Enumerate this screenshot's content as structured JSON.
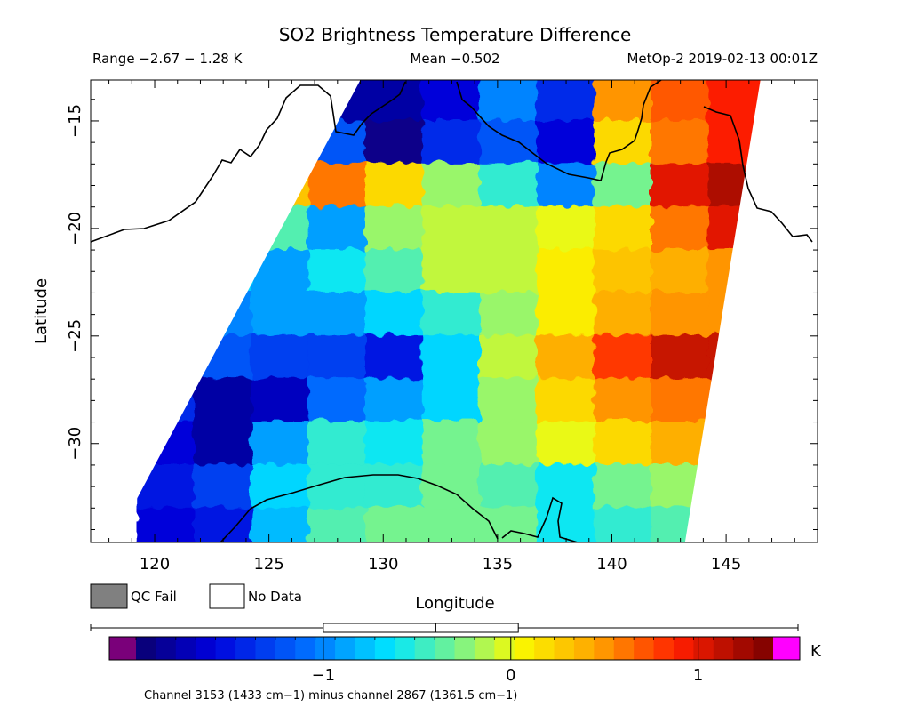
{
  "header": {
    "title": "SO2 Brightness Temperature Difference",
    "range": "Range −2.67 − 1.28 K",
    "mean": "Mean −0.502",
    "satellite_time": "MetOp-2 2019-02-13 00:01Z"
  },
  "axes": {
    "xlabel": "Longitude",
    "ylabel": "Latitude",
    "xlim": [
      117.2,
      149.0
    ],
    "ylim": [
      -34.6,
      -13.1
    ],
    "xticks": [
      {
        "value": 120,
        "label": "120"
      },
      {
        "value": 125,
        "label": "125"
      },
      {
        "value": 130,
        "label": "130"
      },
      {
        "value": 135,
        "label": "135"
      },
      {
        "value": 140,
        "label": "140"
      },
      {
        "value": 145,
        "label": "145"
      }
    ],
    "yticks": [
      {
        "value": -15,
        "label": "−15"
      },
      {
        "value": -20,
        "label": "−20"
      },
      {
        "value": -25,
        "label": "−25"
      },
      {
        "value": -30,
        "label": "−30"
      }
    ]
  },
  "legend": {
    "qc_fail": "QC Fail",
    "no_data": "No Data",
    "qc_fail_color": "#808080",
    "no_data_color": "#ffffff"
  },
  "colorbar": {
    "unit": "K",
    "min": -2.0,
    "max": 1.4,
    "ticks": [
      {
        "value": -1,
        "label": "−1"
      },
      {
        "value": 0,
        "label": "0"
      },
      {
        "value": 1,
        "label": "1"
      }
    ],
    "under_color": "#7a007a",
    "over_color": "#ff00ff",
    "box_range": [
      -1.0,
      0.04
    ],
    "box_mid": -0.4,
    "caption": "Channel 3153 (1433 cm−1) minus channel 2867 (1361.5 cm−1)"
  },
  "chart_data": {
    "type": "heatmap",
    "title": "SO2 Brightness Temperature Difference",
    "xlabel": "Longitude",
    "ylabel": "Latitude",
    "units": "K",
    "value_range": [
      -2.67,
      1.28
    ],
    "mean": -0.502,
    "swath_corners_lonlat": [
      [
        118.2,
        -34.6
      ],
      [
        129.0,
        -13.1
      ],
      [
        146.5,
        -13.1
      ],
      [
        143.2,
        -34.6
      ]
    ],
    "lons": [
      120.5,
      123,
      125.5,
      128,
      130.5,
      133,
      135.5,
      138,
      140.5,
      143,
      145.5
    ],
    "lats": [
      -14,
      -16,
      -18,
      -20,
      -22,
      -24,
      -26,
      -28,
      -30,
      -32,
      -34
    ],
    "values": [
      [
        null,
        null,
        null,
        null,
        -1.8,
        -1.6,
        -1.0,
        -1.4,
        0.5,
        0.7,
        0.9
      ],
      [
        null,
        null,
        null,
        -1.2,
        -1.9,
        -1.4,
        -1.2,
        -1.6,
        0.2,
        0.6,
        0.9
      ],
      [
        null,
        null,
        0.3,
        0.6,
        0.2,
        -0.2,
        -0.5,
        -1.0,
        -0.3,
        1.0,
        1.2
      ],
      [
        null,
        null,
        -0.4,
        -0.9,
        -0.2,
        -0.1,
        -0.1,
        0.0,
        0.2,
        0.6,
        1.0
      ],
      [
        null,
        -0.7,
        -0.9,
        -0.6,
        -0.4,
        -0.1,
        -0.1,
        0.1,
        0.3,
        0.4,
        0.5
      ],
      [
        null,
        -1.0,
        -0.9,
        -0.9,
        -0.7,
        -0.5,
        -0.2,
        0.1,
        0.4,
        0.5,
        null
      ],
      [
        -1.1,
        -1.2,
        -1.3,
        -1.3,
        -1.5,
        -0.7,
        -0.1,
        0.4,
        0.8,
        1.1,
        null
      ],
      [
        -1.4,
        -1.8,
        -1.7,
        -1.1,
        -0.9,
        -0.7,
        -0.2,
        0.2,
        0.5,
        0.6,
        null
      ],
      [
        -1.6,
        -1.8,
        -0.9,
        -0.5,
        -0.6,
        -0.3,
        -0.2,
        0.0,
        0.2,
        0.4,
        null
      ],
      [
        -1.5,
        -1.3,
        -0.7,
        -0.5,
        -0.5,
        -0.3,
        -0.4,
        -0.6,
        -0.3,
        -0.2,
        null
      ],
      [
        -1.6,
        -1.5,
        -0.8,
        -0.4,
        -0.3,
        -0.3,
        -0.3,
        -0.6,
        -0.5,
        -0.4,
        null
      ]
    ]
  }
}
